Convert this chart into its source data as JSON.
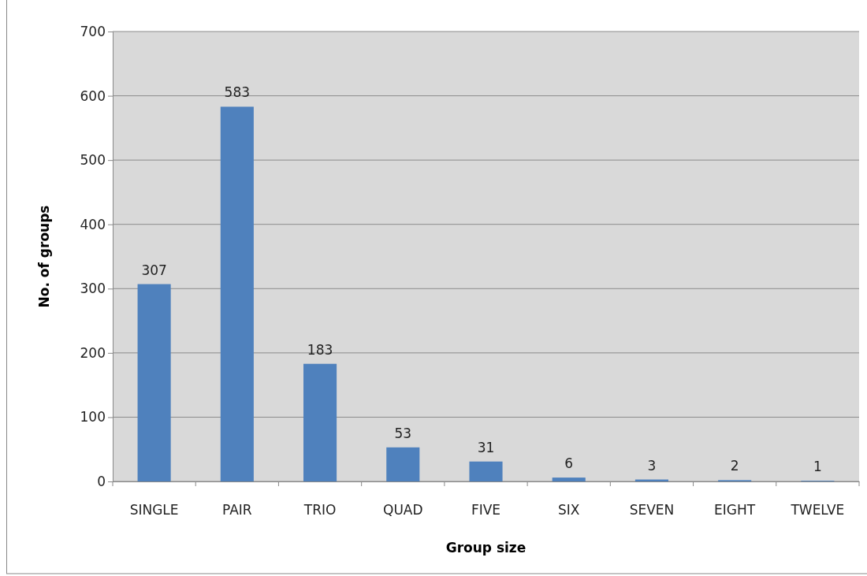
{
  "chart_data": {
    "type": "bar",
    "xlabel": "Group size",
    "ylabel": "No. of groups",
    "categories": [
      "SINGLE",
      "PAIR",
      "TRIO",
      "QUAD",
      "FIVE",
      "SIX",
      "SEVEN",
      "EIGHT",
      "TWELVE"
    ],
    "values": [
      307,
      583,
      183,
      53,
      31,
      6,
      3,
      2,
      1
    ],
    "color": "#4f81bd",
    "ylim": [
      0,
      700
    ],
    "yticks": [
      0,
      100,
      200,
      300,
      400,
      500,
      600,
      700
    ],
    "grid": "y",
    "data_labels": true
  }
}
